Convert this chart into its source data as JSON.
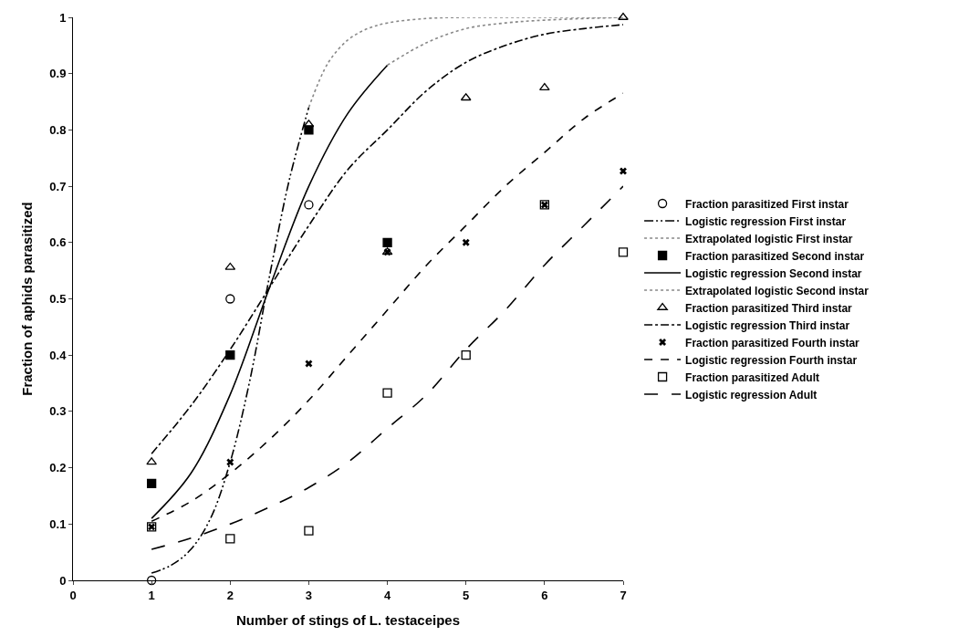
{
  "chart_data": {
    "type": "scatter",
    "xlabel": "Number of stings of L. testaceipes",
    "ylabel": "Fraction of aphids parasitized",
    "xlim": [
      0,
      7
    ],
    "xticks": [
      0,
      1,
      2,
      3,
      4,
      5,
      6,
      7
    ],
    "ylim": [
      0,
      1
    ],
    "yticks": [
      0,
      0.1,
      0.2,
      0.3,
      0.4,
      0.5,
      0.6,
      0.7,
      0.8,
      0.9,
      1
    ],
    "legend": "right",
    "series": [
      {
        "name": "Fraction parasitized First instar",
        "type": "scatter",
        "marker": "circle",
        "color": "#000000",
        "x": [
          1,
          2,
          3
        ],
        "values": [
          0,
          0.5,
          0.667
        ]
      },
      {
        "name": "Logistic regression First instar",
        "type": "line",
        "line_style": "dashdotdot",
        "marker": "none",
        "color": "#000000",
        "x": [
          1,
          1.25,
          1.5,
          1.75,
          2,
          2.25,
          2.5,
          2.75,
          3
        ],
        "values": [
          0.013,
          0.027,
          0.055,
          0.11,
          0.21,
          0.355,
          0.54,
          0.71,
          0.84
        ]
      },
      {
        "name": "Extrapolated logistic First instar",
        "type": "line",
        "line_style": "dotted",
        "marker": "none",
        "color": "#888888",
        "x": [
          3,
          3.25,
          3.5,
          3.75,
          4,
          4.5,
          5,
          6,
          7
        ],
        "values": [
          0.84,
          0.92,
          0.96,
          0.98,
          0.99,
          0.998,
          1,
          1,
          1
        ]
      },
      {
        "name": "Fraction parasitized Second instar",
        "type": "scatter",
        "marker": "square",
        "color": "#000000",
        "x": [
          1,
          2,
          3,
          4
        ],
        "values": [
          0.172,
          0.4,
          0.8,
          0.6
        ]
      },
      {
        "name": "Logistic regression Second instar",
        "type": "line",
        "line_style": "solid",
        "marker": "none",
        "color": "#000000",
        "x": [
          1,
          1.5,
          2,
          2.5,
          3,
          3.5,
          4
        ],
        "values": [
          0.11,
          0.19,
          0.33,
          0.52,
          0.7,
          0.83,
          0.915
        ]
      },
      {
        "name": "Extrapolated logistic Second instar",
        "type": "line",
        "line_style": "dotted",
        "marker": "none",
        "color": "#888888",
        "x": [
          4,
          4.5,
          5,
          5.5,
          6,
          7
        ],
        "values": [
          0.915,
          0.955,
          0.98,
          0.99,
          0.995,
          1
        ]
      },
      {
        "name": "Fraction parasitized Third instar",
        "type": "scatter",
        "marker": "triangle",
        "color": "#000000",
        "x": [
          1,
          2,
          3,
          4,
          5,
          6,
          7
        ],
        "values": [
          0.21,
          0.556,
          0.81,
          0.583,
          0.857,
          0.875,
          1
        ]
      },
      {
        "name": "Logistic regression Third instar",
        "type": "line",
        "line_style": "dashdot",
        "marker": "none",
        "color": "#000000",
        "x": [
          1,
          1.5,
          2,
          2.5,
          3,
          3.5,
          4,
          4.5,
          5,
          5.5,
          6,
          6.5,
          7
        ],
        "values": [
          0.225,
          0.31,
          0.41,
          0.52,
          0.63,
          0.73,
          0.8,
          0.87,
          0.92,
          0.95,
          0.97,
          0.98,
          0.987
        ]
      },
      {
        "name": "Fraction parasitized Fourth instar",
        "type": "scatter",
        "marker": "cross",
        "color": "#000000",
        "x": [
          1,
          2,
          3,
          4,
          5,
          6,
          7
        ],
        "values": [
          0.095,
          0.21,
          0.385,
          0.583,
          0.6,
          0.667,
          0.727
        ]
      },
      {
        "name": "Logistic regression Fourth instar",
        "type": "line",
        "line_style": "dashed",
        "marker": "none",
        "color": "#000000",
        "x": [
          1,
          1.5,
          2,
          2.5,
          3,
          3.5,
          4,
          4.5,
          5,
          5.5,
          6,
          6.5,
          7
        ],
        "values": [
          0.105,
          0.14,
          0.19,
          0.25,
          0.32,
          0.4,
          0.48,
          0.56,
          0.63,
          0.7,
          0.76,
          0.82,
          0.865
        ]
      },
      {
        "name": "Fraction parasitized Adult",
        "type": "scatter",
        "marker": "square",
        "color": "#000000",
        "x": [
          1,
          2,
          3,
          4,
          5,
          6,
          7
        ],
        "values": [
          0.095,
          0.074,
          0.088,
          0.333,
          0.4,
          0.667,
          0.583
        ]
      },
      {
        "name": "Logistic regression Adult",
        "type": "line",
        "line_style": "longdash",
        "marker": "none",
        "color": "#000000",
        "x": [
          1,
          1.5,
          2,
          2.5,
          3,
          3.5,
          4,
          4.5,
          5,
          5.5,
          6,
          6.5,
          7
        ],
        "values": [
          0.055,
          0.075,
          0.1,
          0.13,
          0.165,
          0.21,
          0.27,
          0.33,
          0.41,
          0.48,
          0.56,
          0.63,
          0.7
        ]
      }
    ]
  }
}
